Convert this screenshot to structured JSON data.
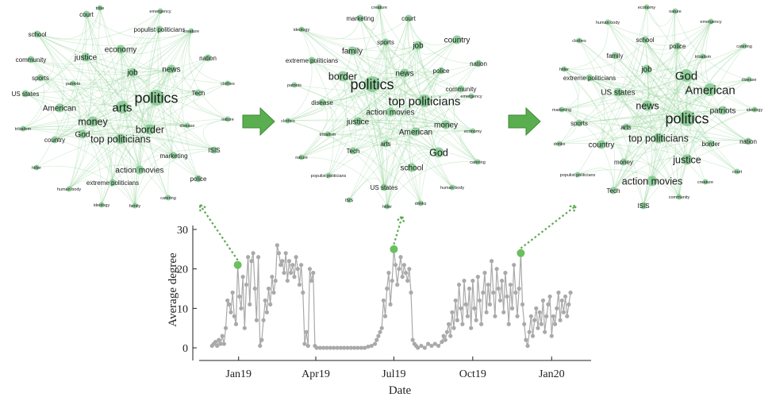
{
  "networks": [
    {
      "id": "jan19",
      "labels": {
        "court": 1,
        "tribe": 0,
        "emergency": 0,
        "school": 1,
        "populist politicians": 1,
        "creature": 0,
        "economy": 2,
        "community": 1,
        "justice": 2,
        "nation": 1,
        "job": 2,
        "news": 2,
        "sports": 1,
        "patriots": 0,
        "clothes": 0,
        "US states": 1,
        "politics": 5,
        "Tech": 1,
        "American": 2,
        "arts": 4,
        "money": 3,
        "border": 3,
        "disease": 0,
        "tribalism": 0,
        "nature": 0,
        "top politicians": 3,
        "country": 1,
        "God": 2,
        "marketing": 1,
        "ISIS": 1,
        "action movies": 2,
        "hitler": 0,
        "police": 1,
        "extreme politicians": 1,
        "human body": 0,
        "ideology": 0,
        "family": 0,
        "catering": 0
      }
    },
    {
      "id": "jul19",
      "labels": {
        "creature": 0,
        "marketing": 1,
        "court": 1,
        "ideology": 0,
        "country": 2,
        "sports": 1,
        "job": 2,
        "family": 2,
        "extreme politicians": 1,
        "nation": 1,
        "news": 2,
        "police": 1,
        "patriots": 0,
        "border": 3,
        "politics": 5,
        "community": 1,
        "emergency": 0,
        "disease": 1,
        "top politicians": 4,
        "action movies": 2,
        "justice": 2,
        "clothes": 0,
        "money": 2,
        "economy": 0,
        "tribalism": 0,
        "American": 2,
        "nature": 0,
        "Tech": 1,
        "arts": 1,
        "God": 3,
        "catering": 0,
        "school": 2,
        "populist politicians": 0,
        "human body": 0,
        "US states": 1,
        "ISIS": 0,
        "hitler": 0,
        "drinks": 0
      }
    },
    {
      "id": "nov19",
      "labels": {
        "economy": 0,
        "nature": 0,
        "human body": 0,
        "emergency": 0,
        "clothes": 0,
        "school": 1,
        "police": 1,
        "catering": 0,
        "family": 1,
        "tribalism": 0,
        "hitler": 0,
        "job": 2,
        "God": 4,
        "extreme politicians": 1,
        "American": 4,
        "disease": 0,
        "US states": 2,
        "patriots": 2,
        "news": 3,
        "ideology": 0,
        "marketing": 0,
        "politics": 5,
        "sports": 1,
        "arts": 1,
        "nation": 1,
        "drinks": 0,
        "country": 2,
        "top politicians": 3,
        "border": 1,
        "money": 1,
        "justice": 3,
        "populist politicians": 0,
        "court": 0,
        "creature": 0,
        "Tech": 1,
        "action movies": 3,
        "community": 0,
        "ISIS": 1
      }
    }
  ],
  "chart_data": {
    "type": "line",
    "xlabel": "Date",
    "ylabel": "Average degree",
    "ylim": [
      -2,
      31
    ],
    "yticks": [
      0,
      10,
      20,
      30
    ],
    "xticks": [
      {
        "label": "Jan19",
        "day": 31
      },
      {
        "label": "Apr19",
        "day": 121
      },
      {
        "label": "Jul19",
        "day": 212
      },
      {
        "label": "Oct19",
        "day": 304
      },
      {
        "label": "Jan20",
        "day": 396
      }
    ],
    "xlim": [
      -15,
      442
    ],
    "series": [
      {
        "points_day": [
          [
            0,
            0.5
          ],
          [
            2,
            1
          ],
          [
            4,
            1.5
          ],
          [
            6,
            0.5
          ],
          [
            8,
            2
          ],
          [
            10,
            1
          ],
          [
            12,
            3
          ],
          [
            14,
            1
          ],
          [
            16,
            5
          ],
          [
            18,
            12
          ],
          [
            20,
            11
          ],
          [
            22,
            9
          ],
          [
            24,
            14
          ],
          [
            26,
            8
          ],
          [
            28,
            6
          ],
          [
            30,
            21
          ],
          [
            32,
            13
          ],
          [
            34,
            10
          ],
          [
            36,
            18
          ],
          [
            38,
            5
          ],
          [
            40,
            16
          ],
          [
            42,
            23
          ],
          [
            44,
            11
          ],
          [
            46,
            22
          ],
          [
            48,
            24
          ],
          [
            50,
            15
          ],
          [
            52,
            7
          ],
          [
            54,
            23
          ],
          [
            56,
            0.5
          ],
          [
            58,
            2
          ],
          [
            60,
            7
          ],
          [
            62,
            12
          ],
          [
            64,
            9
          ],
          [
            66,
            15
          ],
          [
            68,
            11
          ],
          [
            70,
            18
          ],
          [
            72,
            14
          ],
          [
            74,
            17
          ],
          [
            76,
            26
          ],
          [
            78,
            24
          ],
          [
            80,
            21
          ],
          [
            82,
            22
          ],
          [
            84,
            19
          ],
          [
            86,
            24
          ],
          [
            88,
            17
          ],
          [
            90,
            22
          ],
          [
            92,
            19
          ],
          [
            94,
            21
          ],
          [
            96,
            18
          ],
          [
            98,
            23
          ],
          [
            100,
            20
          ],
          [
            102,
            16
          ],
          [
            104,
            21
          ],
          [
            106,
            14
          ],
          [
            108,
            1
          ],
          [
            110,
            4
          ],
          [
            112,
            0.5
          ],
          [
            114,
            20
          ],
          [
            116,
            17
          ],
          [
            118,
            19
          ],
          [
            120,
            0.5
          ],
          [
            122,
            0
          ],
          [
            126,
            0
          ],
          [
            130,
            0
          ],
          [
            134,
            0
          ],
          [
            138,
            0
          ],
          [
            142,
            0
          ],
          [
            146,
            0
          ],
          [
            150,
            0
          ],
          [
            154,
            0
          ],
          [
            158,
            0
          ],
          [
            162,
            0
          ],
          [
            166,
            0
          ],
          [
            170,
            0
          ],
          [
            174,
            0
          ],
          [
            178,
            0
          ],
          [
            182,
            0.3
          ],
          [
            186,
            0.5
          ],
          [
            190,
            1
          ],
          [
            192,
            2
          ],
          [
            194,
            3
          ],
          [
            196,
            4
          ],
          [
            198,
            5
          ],
          [
            200,
            12
          ],
          [
            202,
            8
          ],
          [
            204,
            15
          ],
          [
            206,
            19
          ],
          [
            208,
            11
          ],
          [
            210,
            17
          ],
          [
            212,
            25
          ],
          [
            214,
            21
          ],
          [
            216,
            16
          ],
          [
            218,
            20
          ],
          [
            220,
            23
          ],
          [
            222,
            18
          ],
          [
            224,
            21
          ],
          [
            226,
            19
          ],
          [
            228,
            17
          ],
          [
            230,
            20
          ],
          [
            232,
            14
          ],
          [
            234,
            2
          ],
          [
            236,
            1
          ],
          [
            238,
            0.5
          ],
          [
            240,
            0
          ],
          [
            244,
            0.5
          ],
          [
            248,
            0
          ],
          [
            252,
            1
          ],
          [
            256,
            0.5
          ],
          [
            260,
            1
          ],
          [
            264,
            0.5
          ],
          [
            268,
            1.5
          ],
          [
            270,
            3
          ],
          [
            272,
            2
          ],
          [
            274,
            4
          ],
          [
            276,
            6
          ],
          [
            278,
            3
          ],
          [
            280,
            9
          ],
          [
            282,
            5
          ],
          [
            284,
            12
          ],
          [
            286,
            7
          ],
          [
            288,
            16
          ],
          [
            290,
            10
          ],
          [
            292,
            6
          ],
          [
            294,
            17
          ],
          [
            296,
            11
          ],
          [
            298,
            8
          ],
          [
            300,
            15
          ],
          [
            302,
            5
          ],
          [
            304,
            17
          ],
          [
            306,
            10
          ],
          [
            308,
            7
          ],
          [
            310,
            18
          ],
          [
            312,
            12
          ],
          [
            314,
            6
          ],
          [
            316,
            14
          ],
          [
            318,
            19
          ],
          [
            320,
            9
          ],
          [
            322,
            16
          ],
          [
            324,
            11
          ],
          [
            326,
            22
          ],
          [
            328,
            14
          ],
          [
            330,
            8
          ],
          [
            332,
            20
          ],
          [
            334,
            15
          ],
          [
            336,
            12
          ],
          [
            338,
            17
          ],
          [
            340,
            9
          ],
          [
            342,
            19
          ],
          [
            344,
            13
          ],
          [
            346,
            6
          ],
          [
            348,
            16
          ],
          [
            350,
            10
          ],
          [
            352,
            21
          ],
          [
            354,
            14
          ],
          [
            356,
            8
          ],
          [
            358,
            15
          ],
          [
            360,
            24
          ],
          [
            362,
            11
          ],
          [
            364,
            6
          ],
          [
            366,
            2
          ],
          [
            368,
            0.5
          ],
          [
            370,
            4
          ],
          [
            372,
            8
          ],
          [
            374,
            3
          ],
          [
            376,
            7
          ],
          [
            378,
            10
          ],
          [
            380,
            5
          ],
          [
            382,
            9
          ],
          [
            384,
            6
          ],
          [
            386,
            12
          ],
          [
            388,
            4
          ],
          [
            390,
            8
          ],
          [
            392,
            11
          ],
          [
            394,
            13
          ],
          [
            396,
            3
          ],
          [
            398,
            8
          ],
          [
            400,
            6
          ],
          [
            402,
            10
          ],
          [
            404,
            14
          ],
          [
            406,
            7
          ],
          [
            408,
            12
          ],
          [
            410,
            9
          ],
          [
            412,
            13
          ],
          [
            414,
            8
          ],
          [
            416,
            11
          ],
          [
            418,
            14
          ]
        ],
        "color": "#a9a9a9"
      }
    ],
    "highlights": [
      {
        "day": 30,
        "value": 21,
        "network": "jan19"
      },
      {
        "day": 212,
        "value": 25,
        "network": "jul19"
      },
      {
        "day": 360,
        "value": 24,
        "network": "nov19"
      }
    ],
    "highlight_color": "#6abf5e",
    "arrow_color": "#5aa84e"
  }
}
